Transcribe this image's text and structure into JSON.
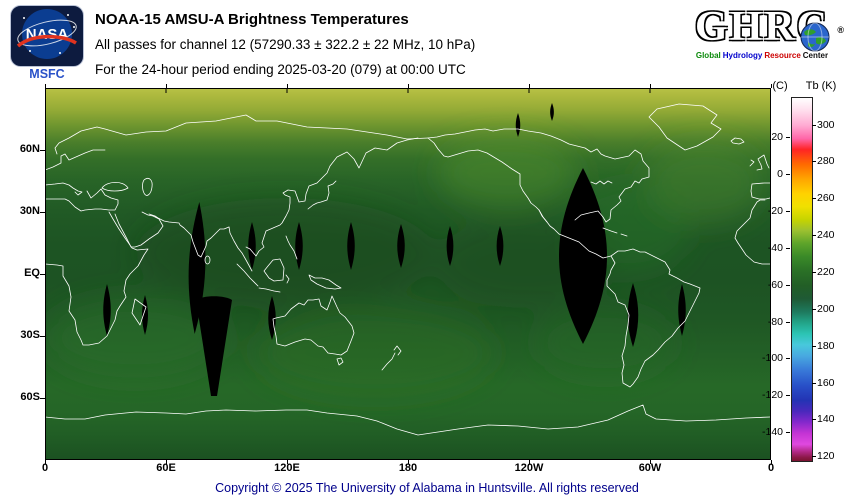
{
  "header": {
    "nasa_badge": {
      "label": "NASA",
      "sub_label": "MSFC"
    },
    "title_line1": "NOAA-15 AMSU-A Brightness Temperatures",
    "title_line2": "All passes for channel 12 (57290.33 ± 322.2 ± 22 MHz, 10 hPa)",
    "title_line3": "For the 24-hour period ending 2025-03-20 (079) at 00:00 UTC",
    "ghrc": {
      "acronym": "GHRC",
      "reg": "®",
      "subtitle_words": [
        {
          "text": "Global",
          "color": "#0a8a0a"
        },
        {
          "text": "Hydrology",
          "color": "#0000cc"
        },
        {
          "text": "Resource",
          "color": "#cc0000"
        },
        {
          "text": "Center",
          "color": "#111111"
        }
      ]
    }
  },
  "map": {
    "lat_ticks": [
      "60N",
      "30N",
      "EQ",
      "30S",
      "60S"
    ],
    "lon_ticks": [
      "0",
      "60E",
      "120E",
      "180",
      "120W",
      "60W",
      "0"
    ]
  },
  "colorbar": {
    "left_title": "(C)",
    "right_title": "Tb (K)",
    "k_ticks": [
      300,
      280,
      260,
      240,
      220,
      200,
      180,
      160,
      140,
      120
    ],
    "c_ticks": [
      20,
      0,
      -20,
      -40,
      -60,
      -80,
      -100,
      -120,
      -140
    ],
    "scale": {
      "top_k": 315,
      "bottom_k": 118
    },
    "stops": [
      {
        "k": 315,
        "color": "#ffffff"
      },
      {
        "k": 308,
        "color": "#ffdcec"
      },
      {
        "k": 300,
        "color": "#ffaad2"
      },
      {
        "k": 293,
        "color": "#ff66a8"
      },
      {
        "k": 287,
        "color": "#ff2424"
      },
      {
        "k": 279,
        "color": "#ff6a00"
      },
      {
        "k": 271,
        "color": "#ffa500"
      },
      {
        "k": 263,
        "color": "#ffd200"
      },
      {
        "k": 256,
        "color": "#f0e000"
      },
      {
        "k": 249,
        "color": "#c6d400"
      },
      {
        "k": 243,
        "color": "#9cc030"
      },
      {
        "k": 236,
        "color": "#5da42a"
      },
      {
        "k": 229,
        "color": "#3a8a28"
      },
      {
        "k": 221,
        "color": "#2a7026"
      },
      {
        "k": 213,
        "color": "#225e26"
      },
      {
        "k": 206,
        "color": "#1f5a35"
      },
      {
        "k": 199,
        "color": "#1e7a5e"
      },
      {
        "k": 193,
        "color": "#22a488"
      },
      {
        "k": 187,
        "color": "#2cc4b4"
      },
      {
        "k": 181,
        "color": "#48c8dc"
      },
      {
        "k": 175,
        "color": "#48a8e0"
      },
      {
        "k": 167,
        "color": "#3878d8"
      },
      {
        "k": 159,
        "color": "#2850c8"
      },
      {
        "k": 151,
        "color": "#2334b4"
      },
      {
        "k": 145,
        "color": "#4a28bc"
      },
      {
        "k": 139,
        "color": "#8428cc"
      },
      {
        "k": 133,
        "color": "#c434d4"
      },
      {
        "k": 127,
        "color": "#e048e0"
      },
      {
        "k": 123,
        "color": "#b02884"
      },
      {
        "k": 120,
        "color": "#8c1848"
      },
      {
        "k": 118,
        "color": "#7a1430"
      }
    ]
  },
  "footer": {
    "copyright": "Copyright © 2025 The University of Alabama in Huntsville. All rights reserved"
  },
  "palette": {
    "nasa_blue": "#0b3d91",
    "nasa_red": "#e0331f",
    "footer_text": "#00008b"
  }
}
